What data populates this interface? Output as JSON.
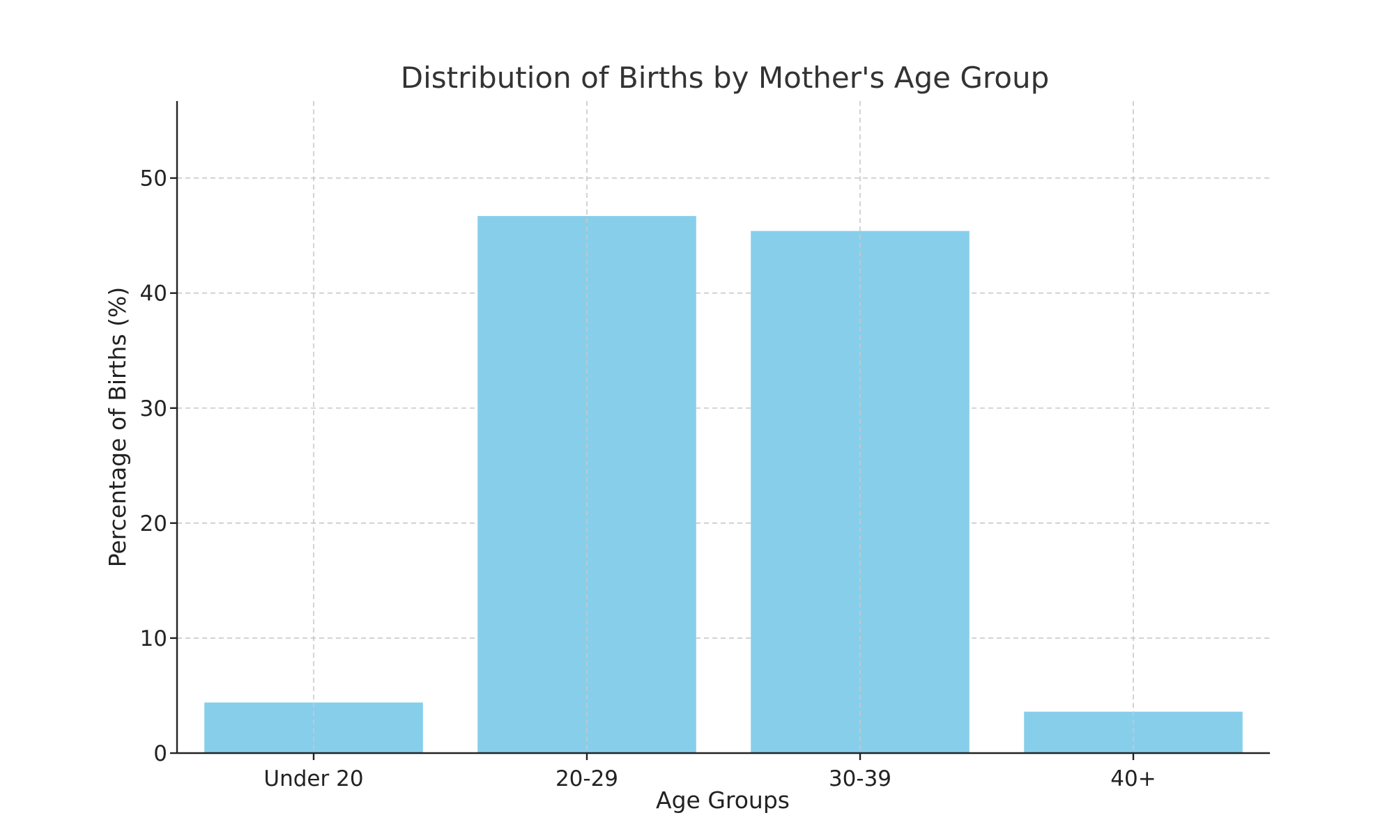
{
  "chart_data": {
    "type": "bar",
    "title": "Distribution of Births by Mother's Age Group",
    "xlabel": "Age Groups",
    "ylabel": "Percentage of Births (%)",
    "categories": [
      "Under 20",
      "20-29",
      "30-39",
      "40+"
    ],
    "values": [
      4.4,
      46.7,
      45.4,
      3.6
    ],
    "ylim": [
      0,
      56.7
    ],
    "yticks": [
      0,
      10,
      20,
      30,
      40,
      50
    ],
    "grid": true,
    "bar_color": "#87CEEB",
    "legend": null
  }
}
